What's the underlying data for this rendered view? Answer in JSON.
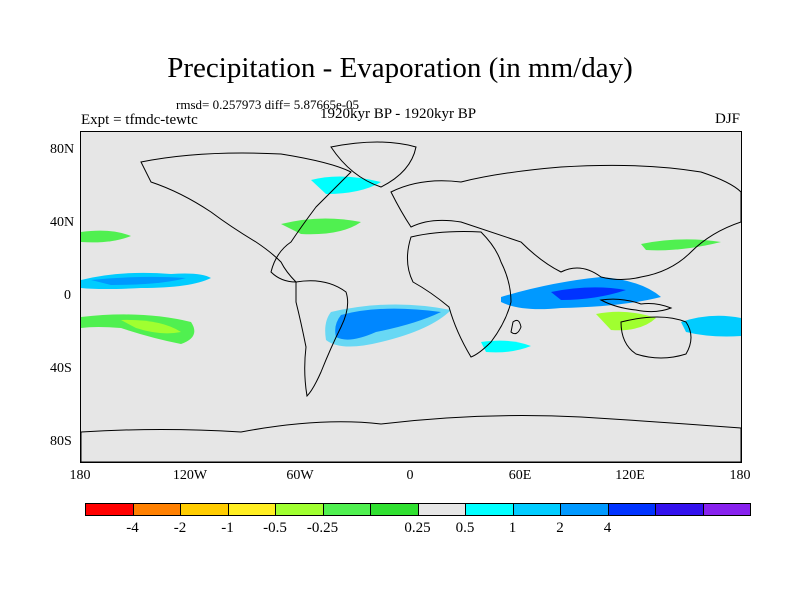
{
  "title": "Precipitation - Evaporation (in mm/day)",
  "stats": "rmsd= 0.257973 diff= 5.87665e-05",
  "experiment": "Expt = tfmdc-tewtc",
  "period": "1920kyr BP - 1920kyr BP",
  "season": "DJF",
  "map": {
    "ocean_color": "#e6e6e6",
    "x_ticks": [
      "180",
      "120W",
      "60W",
      "0",
      "60E",
      "120E",
      "180"
    ],
    "y_ticks": [
      "80N",
      "40N",
      "0",
      "40S",
      "80S"
    ]
  },
  "colorbar": {
    "colors": [
      "#ff0000",
      "#ff8000",
      "#ffcc00",
      "#ffee22",
      "#a0ff30",
      "#50f050",
      "#30e030",
      "#e6e6e6",
      "#00ffff",
      "#00ccff",
      "#0099ff",
      "#0033ff",
      "#3311ee",
      "#8822ee"
    ],
    "labels": [
      "-4",
      "-2",
      "-1",
      "-0.5",
      "-0.25",
      "0.25",
      "0.5",
      "1",
      "2",
      "4"
    ]
  }
}
